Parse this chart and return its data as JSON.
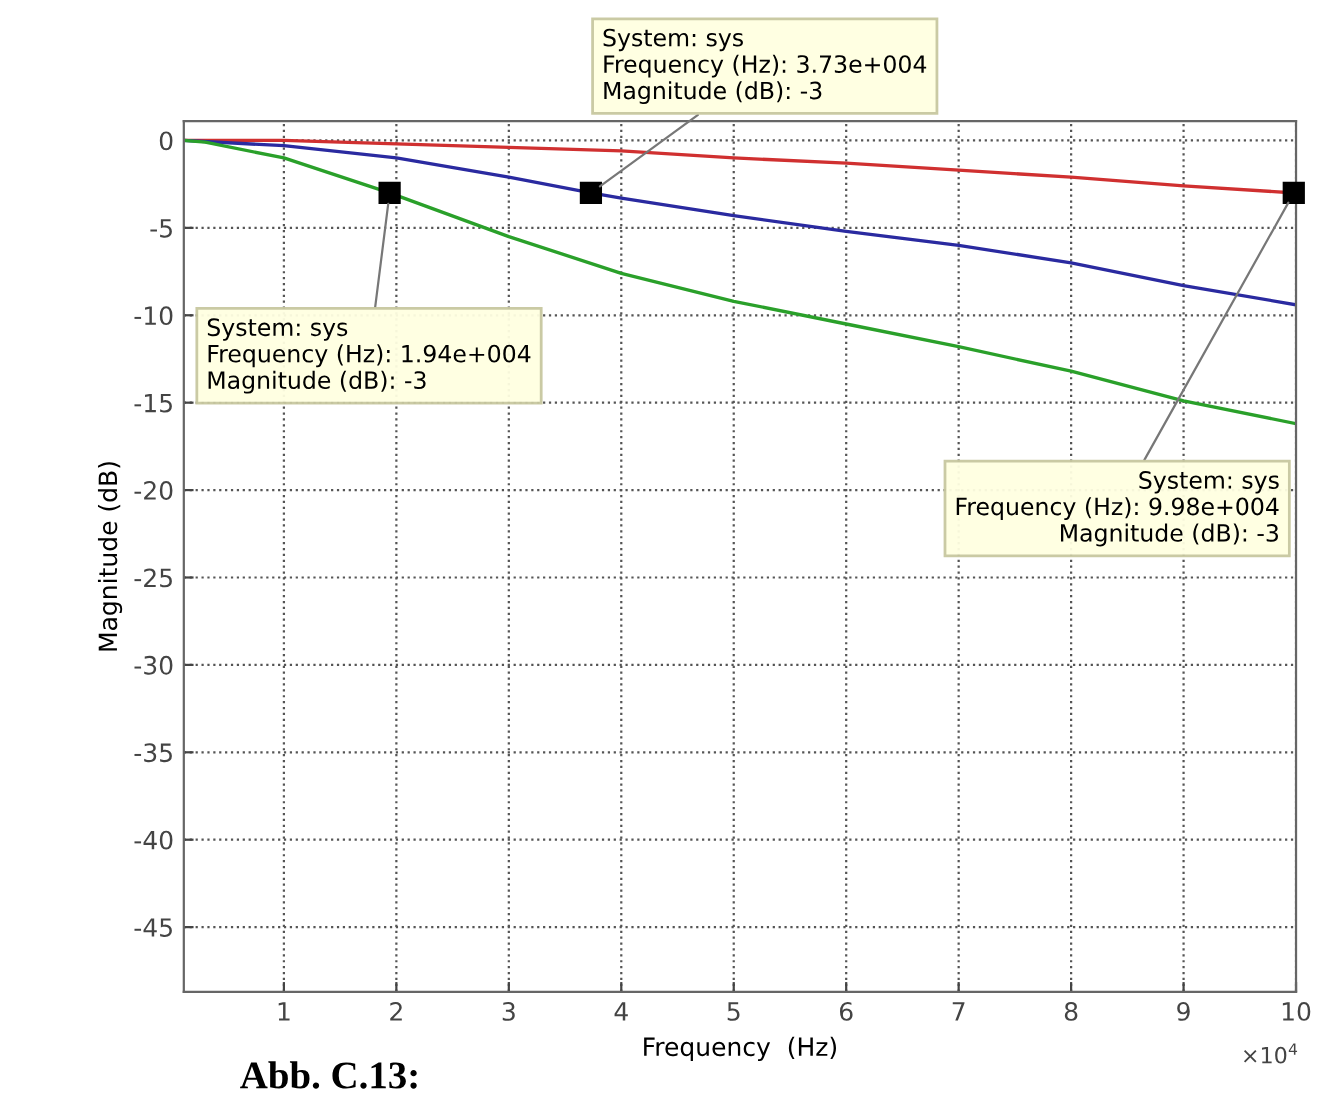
{
  "chart_data": {
    "type": "line",
    "xlabel": "Frequency  (Hz)",
    "ylabel": "Magnitude (dB)",
    "xlim": [
      0.11,
      10
    ],
    "ylim": [
      -48.7,
      1.1
    ],
    "xticks": [
      1,
      2,
      3,
      4,
      5,
      6,
      7,
      8,
      9,
      10
    ],
    "yticks": [
      -45,
      -40,
      -35,
      -30,
      -25,
      -20,
      -15,
      -10,
      -5,
      0
    ],
    "grid": true,
    "series": [
      {
        "color": "#d03030",
        "x": [
          0.11,
          1,
          2,
          3,
          4,
          5,
          6,
          7,
          8,
          9,
          9.98
        ],
        "values": [
          0,
          0,
          -0.2,
          -0.4,
          -0.6,
          -1.0,
          -1.3,
          -1.7,
          -2.1,
          -2.6,
          -3
        ]
      },
      {
        "color": "#2a2aa0",
        "x": [
          0.11,
          1,
          2,
          3,
          3.73,
          4,
          5,
          6,
          7,
          8,
          9,
          10
        ],
        "values": [
          0,
          -0.3,
          -1.0,
          -2.1,
          -3,
          -3.3,
          -4.3,
          -5.2,
          -6.0,
          -7.0,
          -8.3,
          -9.4
        ]
      },
      {
        "color": "#2aa02a",
        "x": [
          0.11,
          0.3,
          1,
          1.94,
          3,
          4,
          5,
          6,
          7,
          8,
          9,
          10
        ],
        "values": [
          0,
          -0.1,
          -1.0,
          -3,
          -5.5,
          -7.6,
          -9.2,
          -10.5,
          -11.8,
          -13.2,
          -14.9,
          -16.2
        ]
      }
    ],
    "annotations": [
      {
        "text": "System: sys\nFrequency (Hz): 1.94e+004\nMagnitude (dB): -3",
        "x": 1.94,
        "y": -3
      },
      {
        "text": "System: sys\nFrequency (Hz): 3.73e+004\nMagnitude (dB): -3",
        "x": 3.73,
        "y": -3
      },
      {
        "text": "System: sys\nFrequency (Hz): 9.98e+004\nMagnitude (dB): -3",
        "x": 9.98,
        "y": -3
      },
      "×10$^{4}$",
      "Abb. C.13:"
    ]
  }
}
